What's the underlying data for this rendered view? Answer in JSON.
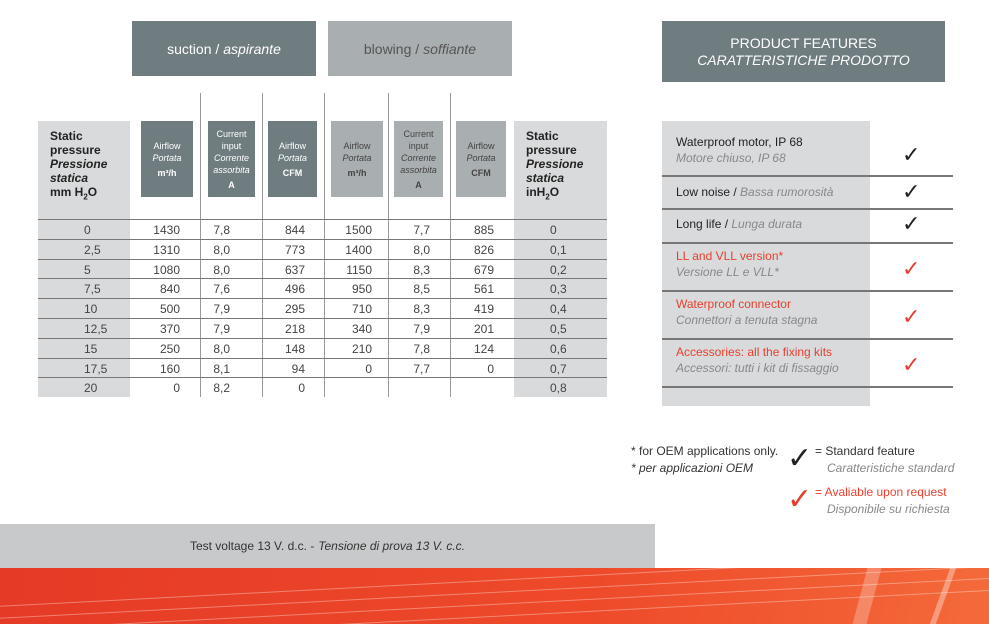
{
  "tabs": {
    "suction": "suction / ",
    "suction_it": "aspirante",
    "blowing": "blowing / ",
    "blowing_it": "soffiante"
  },
  "features_title": {
    "line1": "PRODUCT FEATURES",
    "line2": "CARATTERISTICHE PRODOTTO"
  },
  "table": {
    "left_header": {
      "l1": "Static",
      "l2": "pressure",
      "l3": "Pressione",
      "l4": "statica",
      "unit": "mm H",
      "sub": "2",
      "unit2": "O"
    },
    "right_header": {
      "l1": "Static",
      "l2": "pressure",
      "l3": "Pressione",
      "l4": "statica",
      "unit": "inH",
      "sub": "2",
      "unit2": "O"
    },
    "columns": [
      {
        "a": "Airflow",
        "b": "Portata",
        "u": "m³/h"
      },
      {
        "a": "Current input",
        "b": "Corrente assorbita",
        "u": "A"
      },
      {
        "a": "Airflow",
        "b": "Portata",
        "u": "CFM"
      },
      {
        "a": "Airflow",
        "b": "Portata",
        "u": "m³/h"
      },
      {
        "a": "Current input",
        "b": "Corrente assorbita",
        "u": "A"
      },
      {
        "a": "Airflow",
        "b": "Portata",
        "u": "CFM"
      }
    ],
    "rows": [
      [
        "0",
        "1430",
        "7,8",
        "844",
        "1500",
        "7,7",
        "885",
        "0"
      ],
      [
        "2,5",
        "1310",
        "8,0",
        "773",
        "1400",
        "8,0",
        "826",
        "0,1"
      ],
      [
        "5",
        "1080",
        "8,0",
        "637",
        "1150",
        "8,3",
        "679",
        "0,2"
      ],
      [
        "7,5",
        "840",
        "7,6",
        "496",
        "950",
        "8,5",
        "561",
        "0,3"
      ],
      [
        "10",
        "500",
        "7,9",
        "295",
        "710",
        "8,3",
        "419",
        "0,4"
      ],
      [
        "12,5",
        "370",
        "7,9",
        "218",
        "340",
        "7,9",
        "201",
        "0,5"
      ],
      [
        "15",
        "250",
        "8,0",
        "148",
        "210",
        "7,8",
        "124",
        "0,6"
      ],
      [
        "17,5",
        "160",
        "8,1",
        "94",
        "0",
        "7,7",
        "0",
        "0,7"
      ],
      [
        "20",
        "0",
        "8,2",
        "0",
        "",
        "",
        "",
        "0,8"
      ]
    ]
  },
  "features": [
    {
      "en": "Waterproof motor, IP 68",
      "it": "Motore chiuso, IP 68",
      "check": "standard"
    },
    {
      "en": "Low noise / ",
      "it": "Bassa rumorosità",
      "check": "standard"
    },
    {
      "en": "Long life / ",
      "it": "Lunga durata",
      "check": "standard"
    },
    {
      "en": "LL and VLL version*",
      "it": "Versione LL e VLL*",
      "check": "request"
    },
    {
      "en": "Waterproof connector",
      "it": "Connettori a tenuta stagna",
      "check": "request"
    },
    {
      "en": "Accessories: all the fixing kits",
      "it": "Accessori: tutti i kit di fissaggio",
      "check": "request"
    }
  ],
  "notes": {
    "oem_en": "* for OEM applications only.",
    "oem_it": "* per applicazioni OEM"
  },
  "legend": {
    "std_en": "= Standard feature",
    "std_it": "Caratteristiche standard",
    "req_en": "= Avaliable upon request",
    "req_it": "Disponibile su richiesta"
  },
  "footer": {
    "en": "Test voltage 13 V. d.c. - ",
    "it": "Tensione di prova 13 V. c.c."
  },
  "colors": {
    "dark_header": "#6f7c80",
    "light_header": "#a9aeb0",
    "accent_red": "#e8402f",
    "check_black": "#222222"
  },
  "icons": {
    "standard": "checkmark-black-icon",
    "request": "checkmark-red-icon"
  }
}
